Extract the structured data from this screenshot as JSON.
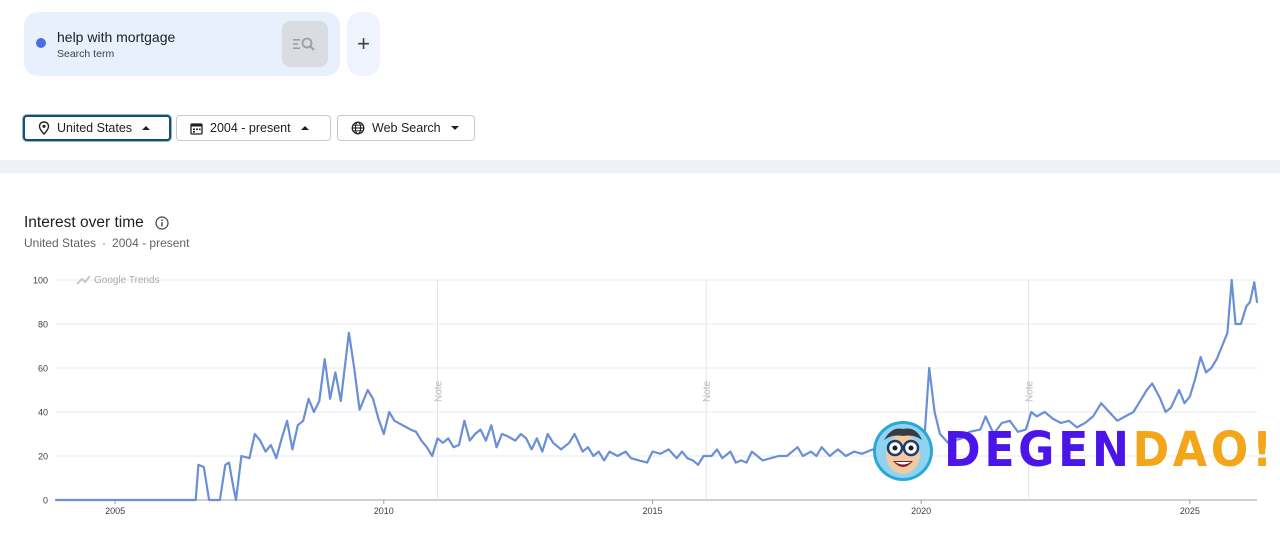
{
  "search_term": {
    "label": "help with mortgage",
    "sublabel": "Search term",
    "series_color": "#4a6fe3"
  },
  "add_button": {
    "label": "+"
  },
  "filters": {
    "location": "United States",
    "time_range": "2004 - present",
    "property": "Web Search"
  },
  "section": {
    "title": "Interest over time",
    "subtitle_location": "United States",
    "subtitle_separator": "·",
    "subtitle_range": "2004 - present"
  },
  "watermark": {
    "logo_text": "Google Trends",
    "brand_part1": "DEGEN",
    "brand_part2": "DAO!",
    "brand_color1": "#4b14e8",
    "brand_color2": "#f4a61a"
  },
  "chart_data": {
    "type": "line",
    "title": "Interest over time",
    "xlabel": "",
    "ylabel": "",
    "ylim": [
      0,
      100
    ],
    "xlim": [
      2003.9,
      2026.25
    ],
    "y_ticks": [
      "0",
      "20",
      "40",
      "60",
      "80",
      "100"
    ],
    "x_ticks": [
      "2005",
      "2010",
      "2015",
      "2020",
      "2025"
    ],
    "notes": [
      {
        "x": 2011.0,
        "label": "Note"
      },
      {
        "x": 2016.0,
        "label": "Note"
      },
      {
        "x": 2022.0,
        "label": "Note"
      }
    ],
    "grid": true,
    "line_color": "#6b8fd6",
    "series": [
      {
        "name": "help with mortgage",
        "points": [
          [
            2003.9,
            0
          ],
          [
            2006.5,
            0
          ],
          [
            2006.55,
            16
          ],
          [
            2006.65,
            15
          ],
          [
            2006.75,
            0
          ],
          [
            2006.95,
            0
          ],
          [
            2007.05,
            16
          ],
          [
            2007.12,
            17
          ],
          [
            2007.2,
            6
          ],
          [
            2007.25,
            0
          ],
          [
            2007.35,
            20
          ],
          [
            2007.5,
            19
          ],
          [
            2007.6,
            30
          ],
          [
            2007.7,
            27
          ],
          [
            2007.8,
            22
          ],
          [
            2007.9,
            25
          ],
          [
            2008.0,
            19
          ],
          [
            2008.1,
            28
          ],
          [
            2008.2,
            36
          ],
          [
            2008.3,
            23
          ],
          [
            2008.4,
            34
          ],
          [
            2008.5,
            36
          ],
          [
            2008.6,
            46
          ],
          [
            2008.7,
            40
          ],
          [
            2008.8,
            45
          ],
          [
            2008.9,
            64
          ],
          [
            2009.0,
            46
          ],
          [
            2009.1,
            58
          ],
          [
            2009.2,
            45
          ],
          [
            2009.35,
            76
          ],
          [
            2009.45,
            60
          ],
          [
            2009.55,
            41
          ],
          [
            2009.7,
            50
          ],
          [
            2009.8,
            46
          ],
          [
            2009.9,
            37
          ],
          [
            2010.0,
            30
          ],
          [
            2010.1,
            40
          ],
          [
            2010.2,
            36
          ],
          [
            2010.35,
            34
          ],
          [
            2010.5,
            32
          ],
          [
            2010.6,
            31
          ],
          [
            2010.7,
            27
          ],
          [
            2010.8,
            24
          ],
          [
            2010.9,
            20
          ],
          [
            2011.0,
            28
          ],
          [
            2011.1,
            26
          ],
          [
            2011.2,
            28
          ],
          [
            2011.3,
            24
          ],
          [
            2011.4,
            25
          ],
          [
            2011.5,
            36
          ],
          [
            2011.6,
            27
          ],
          [
            2011.7,
            30
          ],
          [
            2011.8,
            32
          ],
          [
            2011.9,
            27
          ],
          [
            2012.0,
            34
          ],
          [
            2012.1,
            24
          ],
          [
            2012.2,
            30
          ],
          [
            2012.3,
            29
          ],
          [
            2012.45,
            27
          ],
          [
            2012.55,
            30
          ],
          [
            2012.65,
            28
          ],
          [
            2012.75,
            23
          ],
          [
            2012.85,
            28
          ],
          [
            2012.95,
            22
          ],
          [
            2013.05,
            30
          ],
          [
            2013.15,
            26
          ],
          [
            2013.3,
            23
          ],
          [
            2013.45,
            26
          ],
          [
            2013.55,
            30
          ],
          [
            2013.7,
            22
          ],
          [
            2013.8,
            24
          ],
          [
            2013.9,
            20
          ],
          [
            2014.0,
            22
          ],
          [
            2014.1,
            18
          ],
          [
            2014.2,
            22
          ],
          [
            2014.35,
            20
          ],
          [
            2014.5,
            22
          ],
          [
            2014.6,
            19
          ],
          [
            2014.75,
            18
          ],
          [
            2014.9,
            17
          ],
          [
            2015.0,
            22
          ],
          [
            2015.15,
            21
          ],
          [
            2015.3,
            23
          ],
          [
            2015.45,
            19
          ],
          [
            2015.55,
            22
          ],
          [
            2015.65,
            19
          ],
          [
            2015.75,
            18
          ],
          [
            2015.85,
            16
          ],
          [
            2015.95,
            20
          ],
          [
            2016.1,
            20
          ],
          [
            2016.2,
            23
          ],
          [
            2016.3,
            19
          ],
          [
            2016.45,
            22
          ],
          [
            2016.55,
            17
          ],
          [
            2016.65,
            18
          ],
          [
            2016.75,
            17
          ],
          [
            2016.85,
            22
          ],
          [
            2016.95,
            20
          ],
          [
            2017.05,
            18
          ],
          [
            2017.2,
            19
          ],
          [
            2017.35,
            20
          ],
          [
            2017.5,
            20
          ],
          [
            2017.6,
            22
          ],
          [
            2017.7,
            24
          ],
          [
            2017.8,
            20
          ],
          [
            2017.95,
            22
          ],
          [
            2018.05,
            20
          ],
          [
            2018.15,
            24
          ],
          [
            2018.3,
            20
          ],
          [
            2018.45,
            23
          ],
          [
            2018.6,
            20
          ],
          [
            2018.75,
            22
          ],
          [
            2018.9,
            21
          ],
          [
            2019.1,
            23
          ],
          [
            2019.3,
            21
          ],
          [
            2019.5,
            21
          ],
          [
            2019.7,
            22
          ],
          [
            2019.9,
            22
          ],
          [
            2020.05,
            24
          ],
          [
            2020.15,
            60
          ],
          [
            2020.25,
            40
          ],
          [
            2020.35,
            30
          ],
          [
            2020.5,
            26
          ],
          [
            2020.6,
            27
          ],
          [
            2020.75,
            28
          ],
          [
            2020.9,
            31
          ],
          [
            2021.1,
            32
          ],
          [
            2021.2,
            38
          ],
          [
            2021.35,
            30
          ],
          [
            2021.5,
            35
          ],
          [
            2021.65,
            36
          ],
          [
            2021.8,
            31
          ],
          [
            2021.95,
            32
          ],
          [
            2022.05,
            40
          ],
          [
            2022.15,
            38
          ],
          [
            2022.3,
            40
          ],
          [
            2022.45,
            37
          ],
          [
            2022.6,
            35
          ],
          [
            2022.75,
            36
          ],
          [
            2022.9,
            33
          ],
          [
            2023.05,
            35
          ],
          [
            2023.2,
            38
          ],
          [
            2023.35,
            44
          ],
          [
            2023.5,
            40
          ],
          [
            2023.65,
            36
          ],
          [
            2023.8,
            38
          ],
          [
            2023.95,
            40
          ],
          [
            2024.1,
            46
          ],
          [
            2024.2,
            50
          ],
          [
            2024.3,
            53
          ],
          [
            2024.45,
            46
          ],
          [
            2024.55,
            40
          ],
          [
            2024.65,
            42
          ],
          [
            2024.8,
            50
          ],
          [
            2024.9,
            44
          ],
          [
            2025.0,
            47
          ],
          [
            2025.1,
            55
          ],
          [
            2025.2,
            65
          ],
          [
            2025.3,
            58
          ],
          [
            2025.4,
            60
          ],
          [
            2025.5,
            64
          ],
          [
            2025.6,
            70
          ],
          [
            2025.7,
            76
          ],
          [
            2025.78,
            100
          ],
          [
            2025.85,
            80
          ],
          [
            2025.95,
            80
          ],
          [
            2026.05,
            88
          ],
          [
            2026.12,
            90
          ],
          [
            2026.2,
            99
          ],
          [
            2026.25,
            90
          ]
        ]
      }
    ]
  }
}
